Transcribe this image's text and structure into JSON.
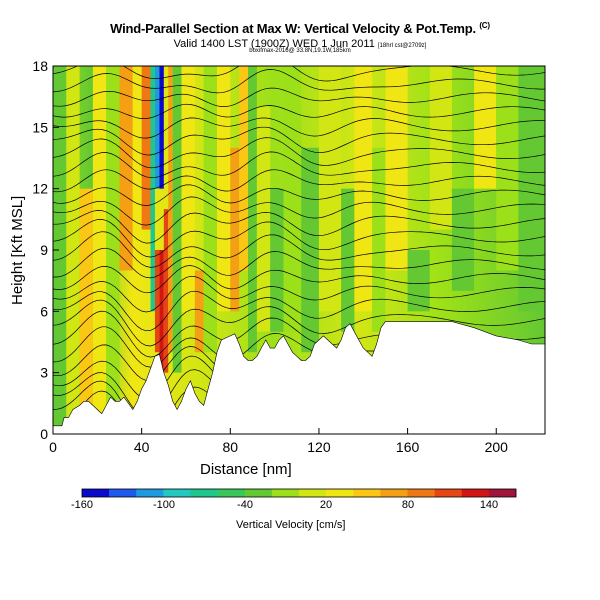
{
  "header": {
    "title": "Wind-Parallel Section at Max W: Vertical Velocity & Pot.Temp.",
    "title_mark": "(C)",
    "subtitle": "Valid 1400 LST (1900Z) WED 1 Jun 2011",
    "subtitle_note": "[18hrl cst@2709z]",
    "file_line": "boxifmax-2016@ 33.8N,19.1W,185km"
  },
  "chart_data": {
    "type": "heatmap",
    "xlabel": "Distance [nm]",
    "ylabel": "Height [Kft MSL]",
    "x_ticks": [
      0,
      40,
      80,
      120,
      160,
      200
    ],
    "y_ticks": [
      0,
      3,
      6,
      9,
      12,
      15,
      18
    ],
    "xlim": [
      0,
      222
    ],
    "ylim": [
      0,
      18
    ],
    "colorbar": {
      "label": "Vertical Velocity [cm/s]",
      "tick_labels": [
        "-160",
        "-100",
        "-40",
        "20",
        "80",
        "140"
      ],
      "colors": [
        "#0a0acc",
        "#1e5af0",
        "#1e9be0",
        "#23c8c0",
        "#1ec88c",
        "#37c85a",
        "#64c832",
        "#9be019",
        "#d2e614",
        "#f0e614",
        "#fac814",
        "#f5a014",
        "#f07814",
        "#e64614",
        "#d21414",
        "#a0143c"
      ]
    },
    "terrain_kft": [
      [
        0,
        0.4
      ],
      [
        2,
        0.4
      ],
      [
        4,
        0.4
      ],
      [
        5,
        0.8
      ],
      [
        7,
        0.8
      ],
      [
        9,
        1.2
      ],
      [
        12,
        1.4
      ],
      [
        14,
        1.6
      ],
      [
        16,
        1.6
      ],
      [
        18,
        1.4
      ],
      [
        20,
        1.2
      ],
      [
        22,
        1.0
      ],
      [
        24,
        1.4
      ],
      [
        26,
        1.8
      ],
      [
        28,
        1.6
      ],
      [
        30,
        1.6
      ],
      [
        32,
        1.8
      ],
      [
        34,
        1.5
      ],
      [
        36,
        1.2
      ],
      [
        38,
        1.6
      ],
      [
        40,
        2.2
      ],
      [
        42,
        2.6
      ],
      [
        44,
        3.2
      ],
      [
        46,
        3.8
      ],
      [
        48,
        3.9
      ],
      [
        50,
        3.0
      ],
      [
        52,
        2.4
      ],
      [
        54,
        1.6
      ],
      [
        56,
        1.2
      ],
      [
        58,
        1.6
      ],
      [
        60,
        2.2
      ],
      [
        62,
        2.6
      ],
      [
        64,
        2.0
      ],
      [
        66,
        1.6
      ],
      [
        68,
        1.4
      ],
      [
        70,
        2.2
      ],
      [
        72,
        3.0
      ],
      [
        74,
        4.0
      ],
      [
        76,
        4.6
      ],
      [
        78,
        4.7
      ],
      [
        80,
        4.8
      ],
      [
        82,
        4.9
      ],
      [
        84,
        4.4
      ],
      [
        86,
        3.8
      ],
      [
        88,
        3.6
      ],
      [
        90,
        3.6
      ],
      [
        92,
        3.8
      ],
      [
        94,
        4.2
      ],
      [
        96,
        4.6
      ],
      [
        98,
        4.2
      ],
      [
        100,
        4.2
      ],
      [
        102,
        4.6
      ],
      [
        104,
        4.8
      ],
      [
        106,
        4.4
      ],
      [
        108,
        4.0
      ],
      [
        110,
        3.8
      ],
      [
        112,
        3.6
      ],
      [
        114,
        3.6
      ],
      [
        116,
        3.8
      ],
      [
        118,
        4.4
      ],
      [
        120,
        4.6
      ],
      [
        122,
        4.8
      ],
      [
        124,
        4.6
      ],
      [
        126,
        4.4
      ],
      [
        128,
        4.2
      ],
      [
        130,
        4.6
      ],
      [
        132,
        5.2
      ],
      [
        134,
        5.4
      ],
      [
        136,
        5.0
      ],
      [
        138,
        4.6
      ],
      [
        140,
        4.2
      ],
      [
        142,
        4.0
      ],
      [
        144,
        3.8
      ],
      [
        146,
        4.4
      ],
      [
        148,
        5.2
      ],
      [
        150,
        5.5
      ],
      [
        160,
        5.5
      ],
      [
        170,
        5.5
      ],
      [
        180,
        5.5
      ],
      [
        190,
        5.2
      ],
      [
        200,
        4.8
      ],
      [
        210,
        4.6
      ],
      [
        216,
        4.4
      ],
      [
        222,
        4.4
      ]
    ]
  }
}
